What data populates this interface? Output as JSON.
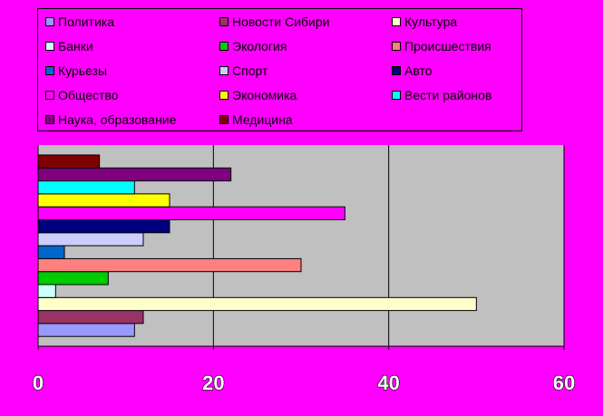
{
  "chart_data": {
    "type": "bar",
    "orientation": "horizontal",
    "grid": true,
    "legend_position": "top",
    "xlim": [
      0,
      60
    ],
    "x_ticks": [
      0,
      20,
      40,
      60
    ],
    "x_tick_labels": [
      "0",
      "20",
      "40",
      "60"
    ],
    "series": [
      {
        "name": "Политика",
        "value": 11,
        "color": "#9999FF"
      },
      {
        "name": "Новости Сибири",
        "value": 12,
        "color": "#993366"
      },
      {
        "name": "Культура",
        "value": 50,
        "color": "#FFFFCC"
      },
      {
        "name": "Банки",
        "value": 2,
        "color": "#CCFFFF"
      },
      {
        "name": "Экология",
        "value": 8,
        "color": "#00CC00"
      },
      {
        "name": "Происшествия",
        "value": 30,
        "color": "#FF8080"
      },
      {
        "name": "Курьезы",
        "value": 3,
        "color": "#0066CC"
      },
      {
        "name": "Спорт",
        "value": 12,
        "color": "#CCCCFF"
      },
      {
        "name": "Авто",
        "value": 15,
        "color": "#000080"
      },
      {
        "name": "Общество",
        "value": 35,
        "color": "#FF00FF"
      },
      {
        "name": "Экономика",
        "value": 15,
        "color": "#FFFF00"
      },
      {
        "name": "Вести районов",
        "value": 11,
        "color": "#00FFFF"
      },
      {
        "name": "Наука, образование",
        "value": 22,
        "color": "#800080"
      },
      {
        "name": "Медицина",
        "value": 7,
        "color": "#800000"
      }
    ]
  }
}
